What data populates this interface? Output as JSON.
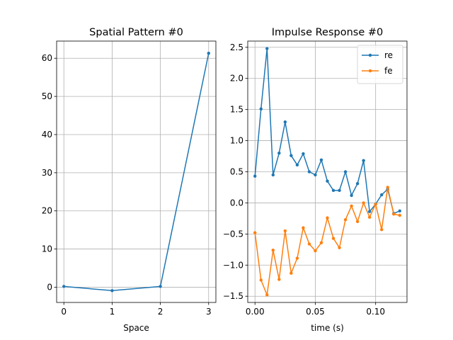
{
  "chart_data": [
    {
      "type": "line",
      "title": "Spatial Pattern #0",
      "xlabel": "Space",
      "ylabel": "",
      "xlim": [
        -0.15,
        3.15
      ],
      "ylim": [
        -4,
        64.5
      ],
      "xticks": [
        0,
        1,
        2,
        3
      ],
      "xtick_labels": [
        "0",
        "1",
        "2",
        "3"
      ],
      "yticks": [
        0,
        10,
        20,
        30,
        40,
        50,
        60
      ],
      "ytick_labels": [
        "0",
        "10",
        "20",
        "30",
        "40",
        "50",
        "60"
      ],
      "grid": true,
      "series": [
        {
          "color": "#1f77b4",
          "x": [
            0,
            1,
            2,
            3
          ],
          "y": [
            0.2,
            -0.9,
            0.2,
            61.3
          ]
        }
      ]
    },
    {
      "type": "line",
      "title": "Impulse Response #0",
      "xlabel": "time (s)",
      "ylabel": "",
      "xlim": [
        -0.006,
        0.126
      ],
      "ylim": [
        -1.6,
        2.6
      ],
      "xticks": [
        0.0,
        0.05,
        0.1
      ],
      "xtick_labels": [
        "0.00",
        "0.05",
        "0.10"
      ],
      "yticks": [
        -1.5,
        -1.0,
        -0.5,
        0.0,
        0.5,
        1.0,
        1.5,
        2.0,
        2.5
      ],
      "ytick_labels": [
        "−1.5",
        "−1.0",
        "−0.5",
        "0.0",
        "0.5",
        "1.0",
        "1.5",
        "2.0",
        "2.5"
      ],
      "grid": true,
      "legend": "top-right",
      "series": [
        {
          "name": "re",
          "color": "#1f77b4",
          "x": [
            0.0,
            0.005,
            0.01,
            0.015,
            0.02,
            0.025,
            0.03,
            0.035,
            0.04,
            0.045,
            0.05,
            0.055,
            0.06,
            0.065,
            0.07,
            0.075,
            0.08,
            0.085,
            0.09,
            0.095,
            0.1,
            0.105,
            0.11,
            0.115,
            0.12
          ],
          "y": [
            0.43,
            1.51,
            2.48,
            0.45,
            0.8,
            1.3,
            0.76,
            0.61,
            0.79,
            0.5,
            0.45,
            0.69,
            0.35,
            0.2,
            0.2,
            0.5,
            0.12,
            0.31,
            0.68,
            -0.14,
            -0.02,
            0.13,
            0.22,
            -0.17,
            -0.13
          ]
        },
        {
          "name": "fe",
          "color": "#ff7f0e",
          "x": [
            0.0,
            0.005,
            0.01,
            0.015,
            0.02,
            0.025,
            0.03,
            0.035,
            0.04,
            0.045,
            0.05,
            0.055,
            0.06,
            0.065,
            0.07,
            0.075,
            0.08,
            0.085,
            0.09,
            0.095,
            0.1,
            0.105,
            0.11,
            0.115,
            0.12
          ],
          "y": [
            -0.48,
            -1.24,
            -1.48,
            -0.76,
            -1.23,
            -0.45,
            -1.13,
            -0.89,
            -0.4,
            -0.66,
            -0.77,
            -0.64,
            -0.24,
            -0.57,
            -0.72,
            -0.27,
            -0.05,
            -0.3,
            0.0,
            -0.23,
            -0.02,
            -0.43,
            0.25,
            -0.18,
            -0.2
          ]
        }
      ]
    }
  ]
}
